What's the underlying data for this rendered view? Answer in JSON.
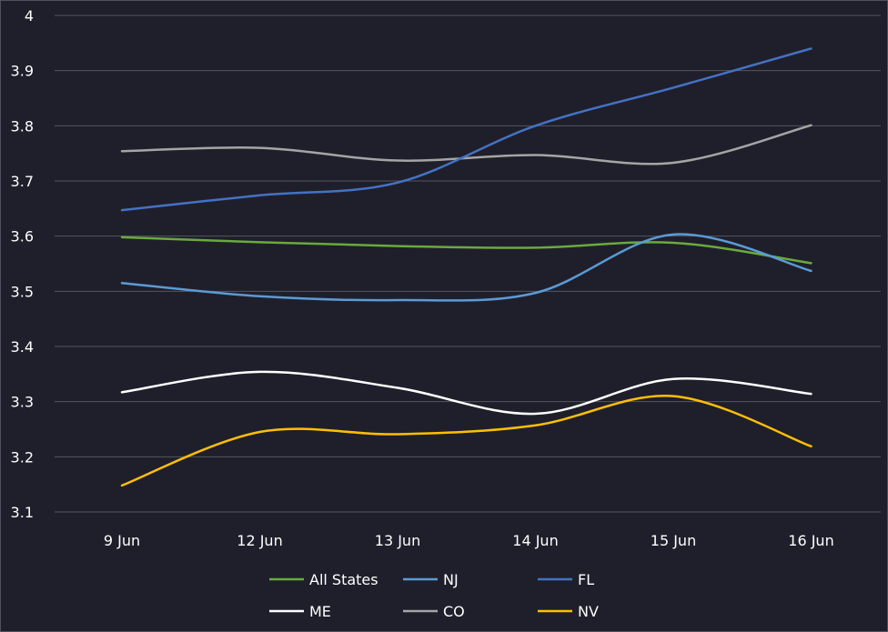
{
  "chart_data": {
    "type": "line",
    "title": "",
    "xlabel": "",
    "ylabel": "",
    "categories": [
      "9 Jun",
      "12 Jun",
      "13 Jun",
      "14 Jun",
      "15 Jun",
      "16 Jun"
    ],
    "ylim": [
      3.1,
      4
    ],
    "yticks": [
      "3.1",
      "3.2",
      "3.3",
      "3.4",
      "3.5",
      "3.6",
      "3.7",
      "3.8",
      "3.9",
      "4"
    ],
    "grid": true,
    "legend_position": "bottom",
    "series": [
      {
        "name": "All States",
        "color": "#6aaa3d",
        "values": [
          3.598,
          3.589,
          3.582,
          3.579,
          3.588,
          3.551
        ]
      },
      {
        "name": "NJ",
        "color": "#5b9bd5",
        "values": [
          3.515,
          3.491,
          3.484,
          3.497,
          3.603,
          3.537
        ]
      },
      {
        "name": "FL",
        "color": "#4472c4",
        "values": [
          3.647,
          3.674,
          3.697,
          3.8,
          3.869,
          3.94
        ]
      },
      {
        "name": "ME",
        "color": "#ffffff",
        "values": [
          3.317,
          3.354,
          3.325,
          3.278,
          3.341,
          3.314
        ]
      },
      {
        "name": "CO",
        "color": "#a5a5a5",
        "values": [
          3.754,
          3.76,
          3.737,
          3.747,
          3.733,
          3.801
        ]
      },
      {
        "name": "NV",
        "color": "#ffc000",
        "values": [
          3.148,
          3.245,
          3.241,
          3.257,
          3.31,
          3.219
        ]
      }
    ]
  }
}
